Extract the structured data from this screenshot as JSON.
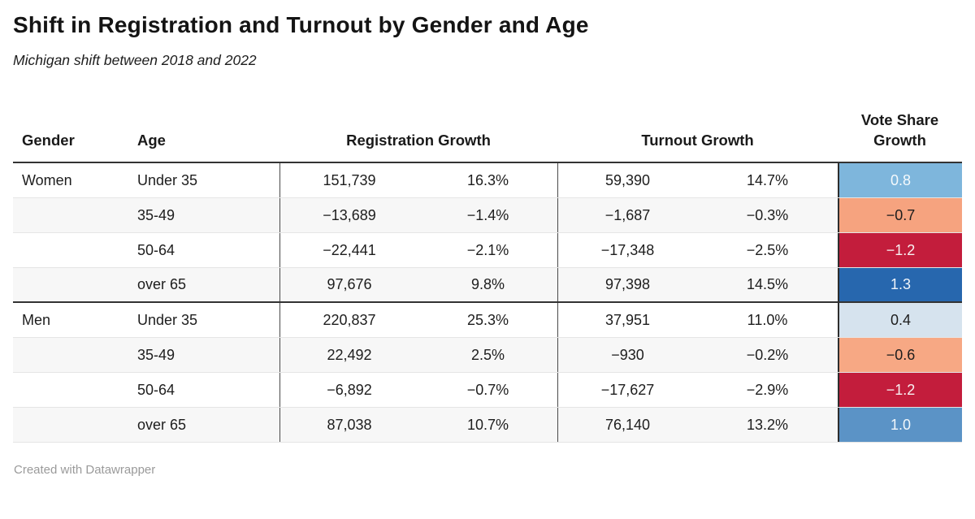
{
  "header": {
    "title": "Shift in Registration and Turnout by Gender and Age",
    "subtitle": "Michigan shift between 2018 and 2022"
  },
  "chart_data": {
    "type": "table",
    "title": "Shift in Registration and Turnout by Gender and Age",
    "subtitle": "Michigan shift between 2018 and 2022",
    "columns": [
      "Gender",
      "Age",
      "Registration Growth (count)",
      "Registration Growth (%)",
      "Turnout Growth (count)",
      "Turnout Growth (%)",
      "Vote Share Growth"
    ],
    "rows": [
      [
        "Women",
        "Under 35",
        151739,
        16.3,
        59390,
        14.7,
        0.8
      ],
      [
        "Women",
        "35-49",
        -13689,
        -1.4,
        -1687,
        -0.3,
        -0.7
      ],
      [
        "Women",
        "50-64",
        -22441,
        -2.1,
        -17348,
        -2.5,
        -1.2
      ],
      [
        "Women",
        "over 65",
        97676,
        9.8,
        97398,
        14.5,
        1.3
      ],
      [
        "Men",
        "Under 35",
        220837,
        25.3,
        37951,
        11.0,
        0.4
      ],
      [
        "Men",
        "35-49",
        22492,
        2.5,
        -930,
        -0.2,
        -0.6
      ],
      [
        "Men",
        "50-64",
        -6892,
        -0.7,
        -17627,
        -2.9,
        -1.2
      ],
      [
        "Men",
        "over 65",
        87038,
        10.7,
        76140,
        13.2,
        1.0
      ]
    ]
  },
  "table": {
    "headers": {
      "gender": "Gender",
      "age": "Age",
      "registration": "Registration Growth",
      "turnout": "Turnout Growth",
      "vote_share": "Vote Share Growth"
    },
    "rows": [
      {
        "gender": "Women",
        "age": "Under 35",
        "reg_count": "151,739",
        "reg_pct": "16.3%",
        "turn_count": "59,390",
        "turn_pct": "14.7%",
        "vote_share": "0.8",
        "vote_bg": "#7eb6dc",
        "vote_fg": "#f4f9fc",
        "group_end": false
      },
      {
        "gender": "",
        "age": "35-49",
        "reg_count": "−13,689",
        "reg_pct": "−1.4%",
        "turn_count": "−1,687",
        "turn_pct": "−0.3%",
        "vote_share": "−0.7",
        "vote_bg": "#f6a37f",
        "vote_fg": "#1d1d1d",
        "group_end": false
      },
      {
        "gender": "",
        "age": "50-64",
        "reg_count": "−22,441",
        "reg_pct": "−2.1%",
        "turn_count": "−17,348",
        "turn_pct": "−2.5%",
        "vote_share": "−1.2",
        "vote_bg": "#c31d3c",
        "vote_fg": "#f7f0f1",
        "group_end": false
      },
      {
        "gender": "",
        "age": "over 65",
        "reg_count": "97,676",
        "reg_pct": "9.8%",
        "turn_count": "97,398",
        "turn_pct": "14.5%",
        "vote_share": "1.3",
        "vote_bg": "#2767ae",
        "vote_fg": "#eff4fa",
        "group_end": true
      },
      {
        "gender": "Men",
        "age": "Under 35",
        "reg_count": "220,837",
        "reg_pct": "25.3%",
        "turn_count": "37,951",
        "turn_pct": "11.0%",
        "vote_share": "0.4",
        "vote_bg": "#d6e3ee",
        "vote_fg": "#1d1d1d",
        "group_end": false
      },
      {
        "gender": "",
        "age": "35-49",
        "reg_count": "22,492",
        "reg_pct": "2.5%",
        "turn_count": "−930",
        "turn_pct": "−0.2%",
        "vote_share": "−0.6",
        "vote_bg": "#f7a884",
        "vote_fg": "#1d1d1d",
        "group_end": false
      },
      {
        "gender": "",
        "age": "50-64",
        "reg_count": "−6,892",
        "reg_pct": "−0.7%",
        "turn_count": "−17,627",
        "turn_pct": "−2.9%",
        "vote_share": "−1.2",
        "vote_bg": "#c31d3c",
        "vote_fg": "#f7f0f1",
        "group_end": false
      },
      {
        "gender": "",
        "age": "over 65",
        "reg_count": "87,038",
        "reg_pct": "10.7%",
        "turn_count": "76,140",
        "turn_pct": "13.2%",
        "vote_share": "1.0",
        "vote_bg": "#5b93c6",
        "vote_fg": "#f2f7fb",
        "group_end": false
      }
    ]
  },
  "colors": {
    "header_border": "#333333",
    "group_border": "#333333",
    "divider": "#4a4a4a",
    "vote_divider": "#2e2e2e",
    "zebra": "#f7f7f7",
    "row_border": "#e5e5e5",
    "footer_text": "#9a9a9a"
  },
  "footer": {
    "credit": "Created with Datawrapper"
  }
}
